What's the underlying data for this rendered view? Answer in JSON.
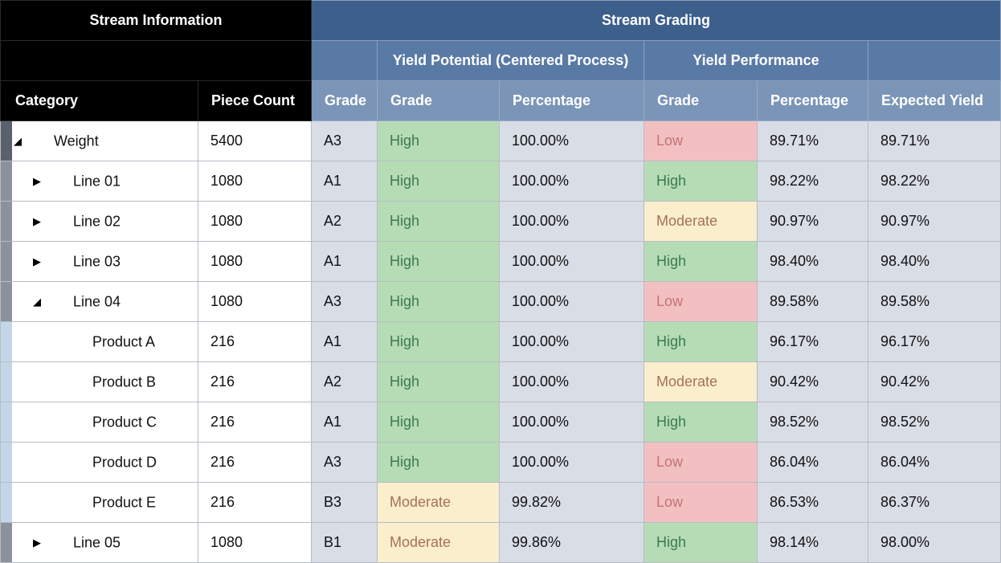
{
  "header": {
    "stream_information": "Stream Information",
    "stream_grading": "Stream Grading",
    "yield_potential": "Yield Potential (Centered Process)",
    "yield_performance": "Yield Performance",
    "columns": {
      "category": "Category",
      "piece_count": "Piece Count",
      "grade": "Grade",
      "potential_grade": "Grade",
      "potential_percentage": "Percentage",
      "performance_grade": "Grade",
      "performance_percentage": "Percentage",
      "expected_yield": "Expected Yield"
    }
  },
  "colors": {
    "high_bg": "#b6dcb5",
    "moderate_bg": "#faeecd",
    "low_bg": "#f2c0c1",
    "header_blue": "#3d5f8c"
  },
  "rows": [
    {
      "category": "Weight",
      "level": 0,
      "toggle": "◢",
      "pieces": "5400",
      "grade": "A3",
      "pot_grade": "High",
      "pot_pct": "100.00%",
      "perf_grade": "Low",
      "perf_pct": "89.71%",
      "expected": "89.71%"
    },
    {
      "category": "Line 01",
      "level": 1,
      "toggle": "▶",
      "pieces": "1080",
      "grade": "A1",
      "pot_grade": "High",
      "pot_pct": "100.00%",
      "perf_grade": "High",
      "perf_pct": "98.22%",
      "expected": "98.22%"
    },
    {
      "category": "Line 02",
      "level": 1,
      "toggle": "▶",
      "pieces": "1080",
      "grade": "A2",
      "pot_grade": "High",
      "pot_pct": "100.00%",
      "perf_grade": "Moderate",
      "perf_pct": "90.97%",
      "expected": "90.97%"
    },
    {
      "category": "Line 03",
      "level": 1,
      "toggle": "▶",
      "pieces": "1080",
      "grade": "A1",
      "pot_grade": "High",
      "pot_pct": "100.00%",
      "perf_grade": "High",
      "perf_pct": "98.40%",
      "expected": "98.40%"
    },
    {
      "category": "Line 04",
      "level": 1,
      "toggle": "◢",
      "pieces": "1080",
      "grade": "A3",
      "pot_grade": "High",
      "pot_pct": "100.00%",
      "perf_grade": "Low",
      "perf_pct": "89.58%",
      "expected": "89.58%"
    },
    {
      "category": "Product A",
      "level": 2,
      "toggle": "",
      "pieces": "216",
      "grade": "A1",
      "pot_grade": "High",
      "pot_pct": "100.00%",
      "perf_grade": "High",
      "perf_pct": "96.17%",
      "expected": "96.17%"
    },
    {
      "category": "Product B",
      "level": 2,
      "toggle": "",
      "pieces": "216",
      "grade": "A2",
      "pot_grade": "High",
      "pot_pct": "100.00%",
      "perf_grade": "Moderate",
      "perf_pct": "90.42%",
      "expected": "90.42%"
    },
    {
      "category": "Product C",
      "level": 2,
      "toggle": "",
      "pieces": "216",
      "grade": "A1",
      "pot_grade": "High",
      "pot_pct": "100.00%",
      "perf_grade": "High",
      "perf_pct": "98.52%",
      "expected": "98.52%"
    },
    {
      "category": "Product D",
      "level": 2,
      "toggle": "",
      "pieces": "216",
      "grade": "A3",
      "pot_grade": "High",
      "pot_pct": "100.00%",
      "perf_grade": "Low",
      "perf_pct": "86.04%",
      "expected": "86.04%"
    },
    {
      "category": "Product E",
      "level": 2,
      "toggle": "",
      "pieces": "216",
      "grade": "B3",
      "pot_grade": "Moderate",
      "pot_pct": "99.82%",
      "perf_grade": "Low",
      "perf_pct": "86.53%",
      "expected": "86.37%"
    },
    {
      "category": "Line 05",
      "level": 1,
      "toggle": "▶",
      "pieces": "1080",
      "grade": "B1",
      "pot_grade": "Moderate",
      "pot_pct": "99.86%",
      "perf_grade": "High",
      "perf_pct": "98.14%",
      "expected": "98.00%"
    }
  ]
}
